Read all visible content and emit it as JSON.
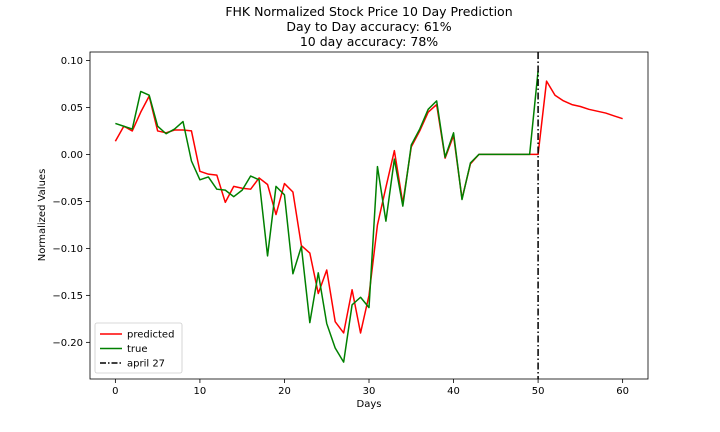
{
  "chart_data": {
    "type": "line",
    "title": "FHK Normalized Stock Price 10 Day Prediction",
    "subtitle_lines": [
      "Day to Day accuracy: 61%",
      "10 day accuracy: 78%"
    ],
    "xlabel": "Days",
    "ylabel": "Normalized Values",
    "xlim": [
      -3,
      63
    ],
    "ylim": [
      -0.239,
      0.109
    ],
    "xticks": [
      0,
      10,
      20,
      30,
      40,
      50,
      60
    ],
    "xtick_labels": [
      "0",
      "10",
      "20",
      "30",
      "40",
      "50",
      "60"
    ],
    "yticks": [
      0.1,
      0.05,
      0.0,
      -0.05,
      -0.1,
      -0.15,
      -0.2
    ],
    "ytick_labels": [
      "0.10",
      "0.05",
      "0.00",
      "−0.05",
      "−0.10",
      "−0.15",
      "−0.20"
    ],
    "grid": false,
    "legend_position": "lower-left",
    "series": [
      {
        "name": "predicted",
        "color": "#ff0000",
        "x": [
          0,
          1,
          2,
          3,
          4,
          5,
          6,
          7,
          8,
          9,
          10,
          11,
          12,
          13,
          14,
          15,
          16,
          17,
          18,
          19,
          20,
          21,
          22,
          23,
          24,
          25,
          26,
          27,
          28,
          29,
          30,
          31,
          32,
          33,
          34,
          35,
          36,
          37,
          38,
          39,
          40,
          41,
          42,
          43,
          44,
          45,
          46,
          47,
          48,
          49,
          50,
          51,
          52,
          53,
          54,
          55,
          56,
          57,
          58,
          59,
          60
        ],
        "values": [
          0.014,
          0.03,
          0.025,
          0.045,
          0.062,
          0.025,
          0.023,
          0.026,
          0.026,
          0.025,
          -0.018,
          -0.021,
          -0.022,
          -0.051,
          -0.034,
          -0.036,
          -0.037,
          -0.025,
          -0.032,
          -0.064,
          -0.031,
          -0.04,
          -0.097,
          -0.105,
          -0.148,
          -0.123,
          -0.178,
          -0.19,
          -0.144,
          -0.19,
          -0.15,
          -0.075,
          -0.035,
          0.004,
          -0.052,
          0.008,
          0.025,
          0.045,
          0.053,
          -0.004,
          0.02,
          -0.047,
          -0.01,
          0.0,
          0.0,
          0.0,
          0.0,
          0.0,
          0.0,
          0.0,
          0.0,
          0.078,
          0.063,
          0.057,
          0.053,
          0.051,
          0.048,
          0.046,
          0.044,
          0.041,
          0.038
        ]
      },
      {
        "name": "true",
        "color": "#008000",
        "x": [
          0,
          1,
          2,
          3,
          4,
          5,
          6,
          7,
          8,
          9,
          10,
          11,
          12,
          13,
          14,
          15,
          16,
          17,
          18,
          19,
          20,
          21,
          22,
          23,
          24,
          25,
          26,
          27,
          28,
          29,
          30,
          31,
          32,
          33,
          34,
          35,
          36,
          37,
          38,
          39,
          40,
          41,
          42,
          43,
          44,
          45,
          46,
          47,
          48,
          49,
          50
        ],
        "values": [
          0.033,
          0.03,
          0.027,
          0.067,
          0.063,
          0.03,
          0.022,
          0.027,
          0.035,
          -0.007,
          -0.027,
          -0.024,
          -0.037,
          -0.038,
          -0.045,
          -0.038,
          -0.023,
          -0.027,
          -0.108,
          -0.034,
          -0.043,
          -0.127,
          -0.098,
          -0.179,
          -0.126,
          -0.18,
          -0.206,
          -0.221,
          -0.16,
          -0.152,
          -0.163,
          -0.013,
          -0.071,
          -0.005,
          -0.055,
          0.01,
          0.027,
          0.048,
          0.057,
          -0.003,
          0.023,
          -0.048,
          -0.009,
          0.0,
          0.0,
          0.0,
          0.0,
          0.0,
          0.0,
          0.0,
          0.089
        ]
      }
    ],
    "vline": {
      "name": "april 27",
      "x": 50,
      "color": "#000000",
      "style": "dash-dot"
    }
  }
}
